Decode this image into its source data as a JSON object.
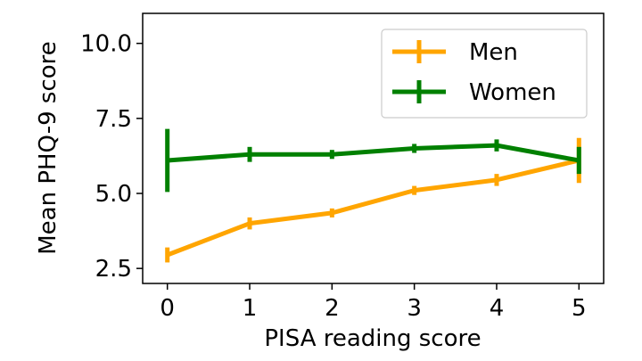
{
  "chart_data": {
    "type": "line",
    "title": "",
    "xlabel": "PISA reading score",
    "ylabel": "Mean PHQ-9 score",
    "x": [
      0,
      1,
      2,
      3,
      4,
      5
    ],
    "xlim": [
      -0.3,
      5.3
    ],
    "ylim": [
      2.0,
      11.0
    ],
    "xticks": [
      0,
      1,
      2,
      3,
      4,
      5
    ],
    "xtick_labels": [
      "0",
      "1",
      "2",
      "3",
      "4",
      "5"
    ],
    "yticks": [
      2.5,
      5.0,
      7.5,
      10.0
    ],
    "ytick_labels": [
      "2.5",
      "5.0",
      "7.5",
      "10.0"
    ],
    "grid": false,
    "legend_position": "top-right",
    "series": [
      {
        "name": "Men",
        "color": "#ffa500",
        "values": [
          2.95,
          4.0,
          4.35,
          5.1,
          5.45,
          6.1
        ],
        "errors": [
          0.25,
          0.2,
          0.15,
          0.15,
          0.2,
          0.75
        ]
      },
      {
        "name": "Women",
        "color": "#008000",
        "values": [
          6.1,
          6.3,
          6.3,
          6.5,
          6.6,
          6.1
        ],
        "errors": [
          1.05,
          0.25,
          0.15,
          0.15,
          0.2,
          0.45
        ]
      }
    ]
  }
}
